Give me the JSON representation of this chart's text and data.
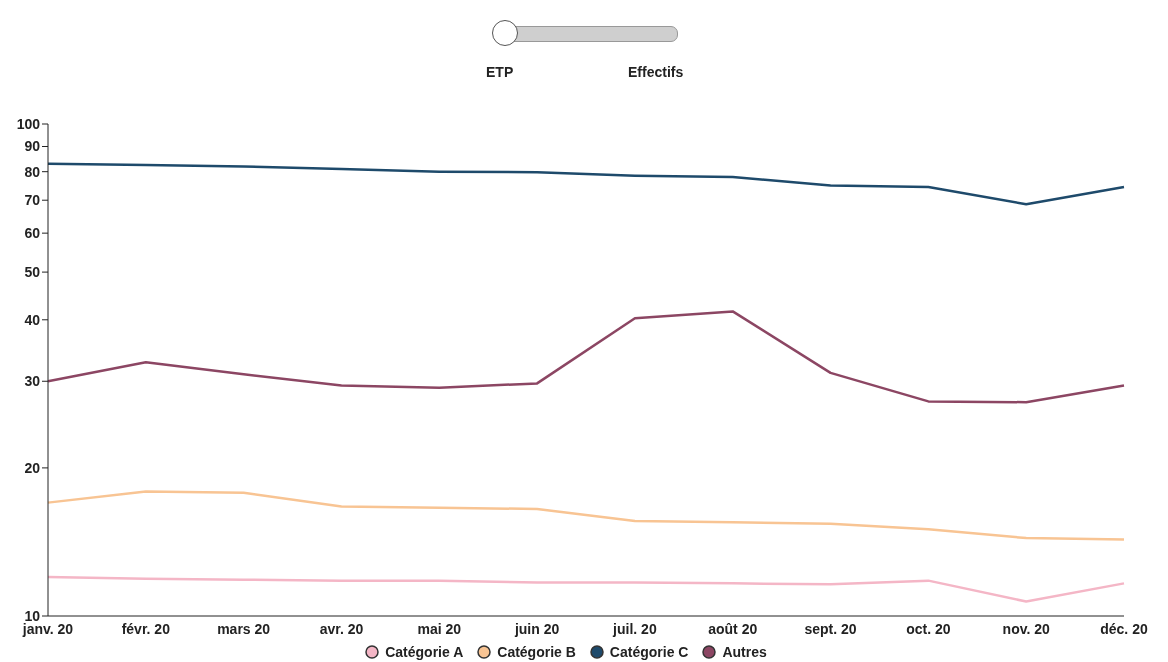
{
  "chart_data": {
    "type": "line",
    "annotations": [
      "ETP",
      "Effectifs"
    ],
    "categories": [
      "janv. 20",
      "févr. 20",
      "mars 20",
      "avr. 20",
      "mai 20",
      "juin 20",
      "juil. 20",
      "août 20",
      "sept. 20",
      "oct. 20",
      "nov. 20",
      "déc. 20"
    ],
    "series": [
      {
        "name": "Catégorie A",
        "color": "#f4b6c6",
        "values": [
          12.0,
          11.9,
          11.85,
          11.8,
          11.8,
          11.7,
          11.7,
          11.65,
          11.6,
          11.8,
          10.7,
          11.65
        ]
      },
      {
        "name": "Catégorie B",
        "color": "#f8c493",
        "values": [
          17.0,
          17.9,
          17.8,
          16.7,
          16.6,
          16.5,
          15.6,
          15.5,
          15.4,
          15.0,
          14.4,
          14.3
        ]
      },
      {
        "name": "Catégorie C",
        "color": "#1e4a6b",
        "values": [
          83,
          82.5,
          82,
          81,
          80,
          79.8,
          78.5,
          78,
          75,
          74.5,
          68.7,
          74.5
        ]
      },
      {
        "name": "Autres",
        "color": "#8c4663",
        "values": [
          30,
          32.8,
          31,
          29.4,
          29.1,
          29.7,
          40.3,
          41.6,
          31.2,
          27.3,
          27.2,
          29.4
        ]
      }
    ],
    "ylim": [
      10,
      100
    ],
    "yticks": [
      10,
      20,
      30,
      40,
      50,
      60,
      70,
      80,
      90,
      100
    ],
    "log": true,
    "grid": false,
    "legend": "bottom",
    "marker": "none",
    "line_style": "solid"
  }
}
